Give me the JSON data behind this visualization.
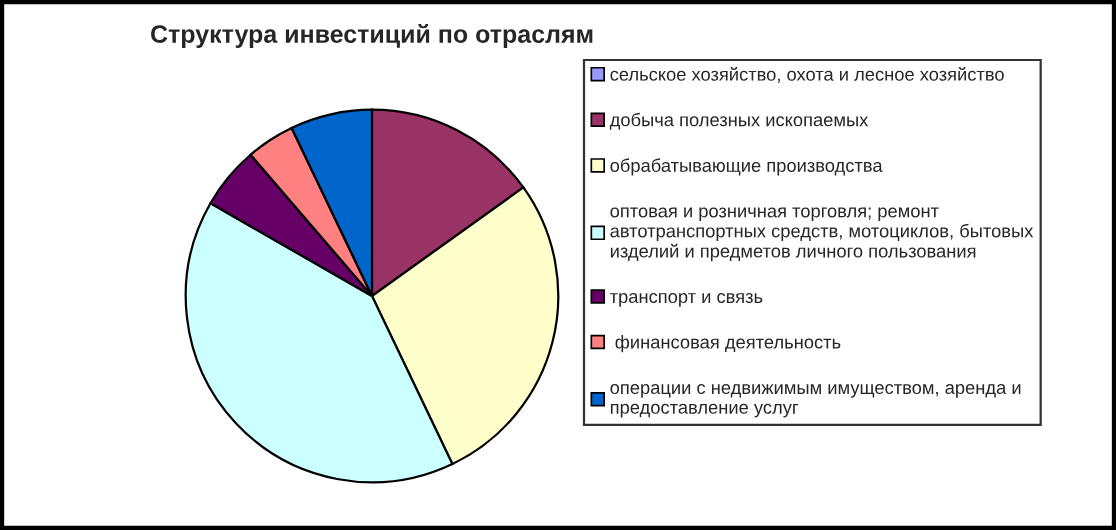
{
  "chart_data": {
    "type": "pie",
    "title": "Структура инвестиций по отраслям",
    "categories": [
      "сельское хозяйство, охота и лесное хозяйство",
      "добыча полезных ископаемых",
      "обрабатывающие производства",
      "оптовая и розничная торговля; ремонт\nавтотранспортных средств, мотоциклов, бытовых\nизделий и предметов личного пользования",
      "транспорт и связь",
      " финансовая деятельность",
      "операции с недвижимым имуществом, аренда и\nпредоставление услуг"
    ],
    "values": [
      null,
      15.1,
      27.8,
      40.4,
      5.4,
      4.2,
      7.1
    ],
    "colors": [
      "#9999ff",
      "#993366",
      "#ffffcc",
      "#ccffff",
      "#660066",
      "#ff8080",
      "#0066cc"
    ],
    "legend": "right"
  }
}
